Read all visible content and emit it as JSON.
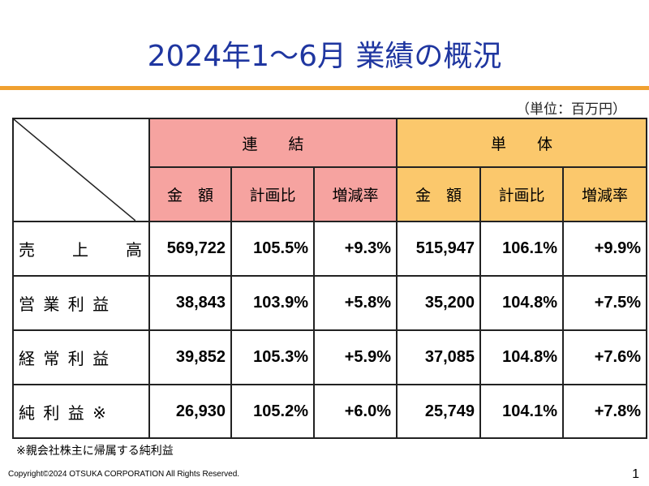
{
  "header": {
    "title": "2024年1～6月 業績の概況",
    "unit": "（単位：百万円）"
  },
  "table": {
    "groups": [
      "連　　結",
      "単　　体"
    ],
    "subheaders": [
      "金　額",
      "計画比",
      "増減率",
      "金　額",
      "計画比",
      "増減率"
    ],
    "rows": [
      [
        "売　　上　　高",
        "569,722",
        "105.5%",
        "+9.3%",
        "515,947",
        "106.1%",
        "+9.9%"
      ],
      [
        "営 業 利 益",
        "38,843",
        "103.9%",
        "+5.8%",
        "35,200",
        "104.8%",
        "+7.5%"
      ],
      [
        "経 常 利 益",
        "39,852",
        "105.3%",
        "+5.9%",
        "37,085",
        "104.8%",
        "+7.6%"
      ],
      [
        "純 利 益 ※",
        "26,930",
        "105.2%",
        "+6.0%",
        "25,749",
        "104.1%",
        "+7.8%"
      ]
    ]
  },
  "footnote": "※親会社株主に帰属する純利益",
  "footer": {
    "copyright": "Copyright©2024 OTSUKA CORPORATION All Rights Reserved.",
    "page": "1"
  }
}
